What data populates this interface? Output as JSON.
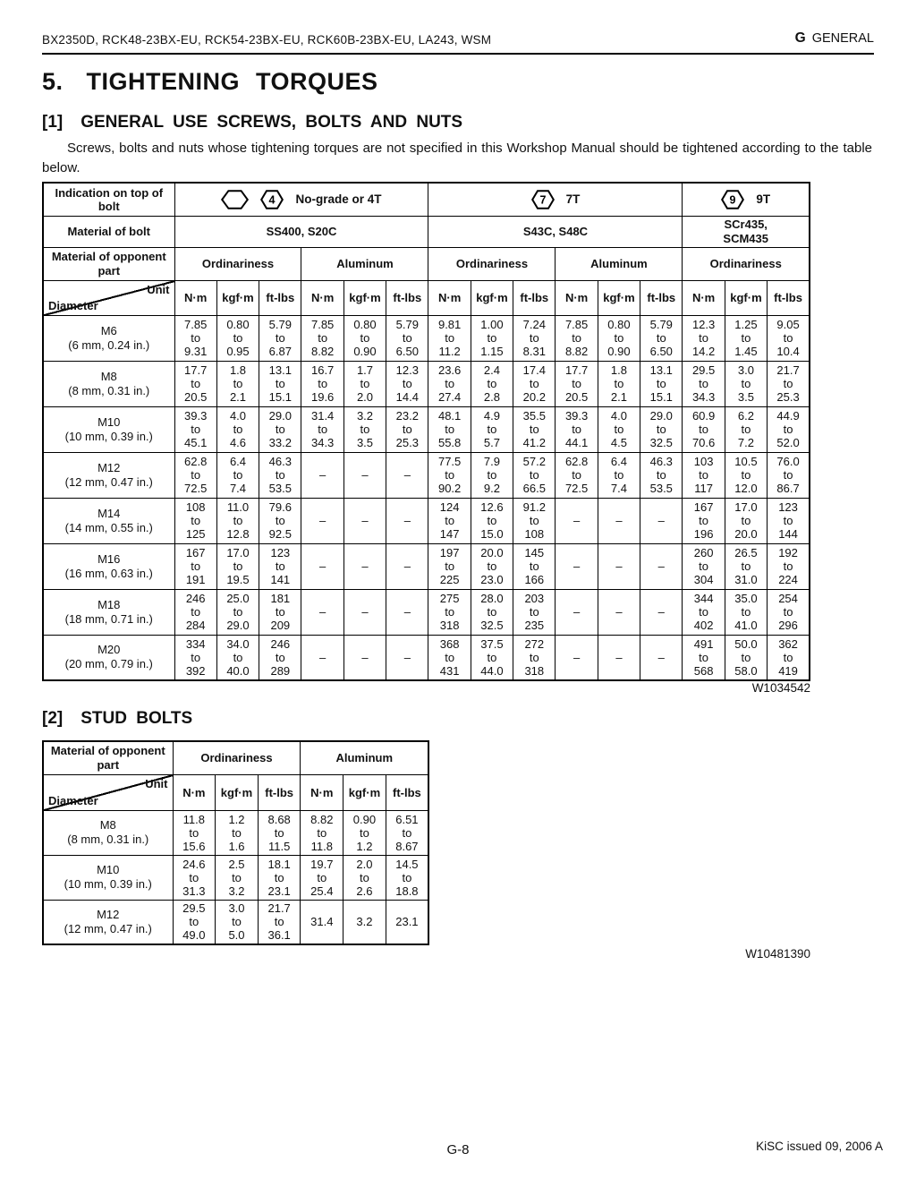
{
  "page": {
    "header_left": "BX2350D, RCK48-23BX-EU, RCK54-23BX-EU, RCK60B-23BX-EU, LA243, WSM",
    "header_right_letter": "G",
    "header_right_word": "GENERAL",
    "title_number": "5.",
    "title_text": "TIGHTENING TORQUES",
    "footer_page": "G-8",
    "footer_right": "KiSC issued 09, 2006 A"
  },
  "section1": {
    "number": "[1]",
    "heading": "GENERAL USE SCREWS, BOLTS AND NUTS",
    "paragraph": "Screws, bolts and nuts whose tightening torques are not specified in this Workshop Manual should be tightened according to the table below.",
    "watermark": "W1034542"
  },
  "section2": {
    "number": "[2]",
    "heading": "STUD BOLTS",
    "watermark": "W10481390"
  },
  "dash": "–",
  "to_word": "to",
  "table1": {
    "indication_label": "Indication on top of bolt",
    "grades": [
      {
        "icons": [
          {
            "type": "hexagon-blank"
          },
          {
            "type": "hexagon",
            "number": "4"
          }
        ],
        "label": "No-grade or 4T",
        "span": 6
      },
      {
        "icons": [
          {
            "type": "hexagon",
            "number": "7"
          }
        ],
        "label": "7T",
        "span": 6
      },
      {
        "icons": [
          {
            "type": "hexagon",
            "number": "9"
          }
        ],
        "label": "9T",
        "span": 3
      }
    ],
    "material_label": "Material of bolt",
    "materials": [
      {
        "text": "SS400, S20C",
        "span": 6
      },
      {
        "text": "S43C, S48C",
        "span": 6
      },
      {
        "text": "SCr435,\nSCM435",
        "span": 3
      }
    ],
    "opponent_label": "Material of opponent part",
    "groups": [
      {
        "label": "Ordinariness",
        "span": 3
      },
      {
        "label": "Aluminum",
        "span": 3
      },
      {
        "label": "Ordinariness",
        "span": 3
      },
      {
        "label": "Aluminum",
        "span": 3
      },
      {
        "label": "Ordinariness",
        "span": 3
      }
    ],
    "unit_label": "Unit",
    "diameter_label": "Diameter",
    "units": [
      "N·m",
      "kgf·m",
      "ft-lbs",
      "N·m",
      "kgf·m",
      "ft-lbs",
      "N·m",
      "kgf·m",
      "ft-lbs",
      "N·m",
      "kgf·m",
      "ft-lbs",
      "N·m",
      "kgf·m",
      "ft-lbs"
    ],
    "rows": [
      {
        "label": "M6",
        "sub": "(6 mm, 0.24 in.)",
        "cells": [
          [
            "7.85",
            "9.31"
          ],
          [
            "0.80",
            "0.95"
          ],
          [
            "5.79",
            "6.87"
          ],
          [
            "7.85",
            "8.82"
          ],
          [
            "0.80",
            "0.90"
          ],
          [
            "5.79",
            "6.50"
          ],
          [
            "9.81",
            "11.2"
          ],
          [
            "1.00",
            "1.15"
          ],
          [
            "7.24",
            "8.31"
          ],
          [
            "7.85",
            "8.82"
          ],
          [
            "0.80",
            "0.90"
          ],
          [
            "5.79",
            "6.50"
          ],
          [
            "12.3",
            "14.2"
          ],
          [
            "1.25",
            "1.45"
          ],
          [
            "9.05",
            "10.4"
          ]
        ]
      },
      {
        "label": "M8",
        "sub": "(8 mm, 0.31 in.)",
        "cells": [
          [
            "17.7",
            "20.5"
          ],
          [
            "1.8",
            "2.1"
          ],
          [
            "13.1",
            "15.1"
          ],
          [
            "16.7",
            "19.6"
          ],
          [
            "1.7",
            "2.0"
          ],
          [
            "12.3",
            "14.4"
          ],
          [
            "23.6",
            "27.4"
          ],
          [
            "2.4",
            "2.8"
          ],
          [
            "17.4",
            "20.2"
          ],
          [
            "17.7",
            "20.5"
          ],
          [
            "1.8",
            "2.1"
          ],
          [
            "13.1",
            "15.1"
          ],
          [
            "29.5",
            "34.3"
          ],
          [
            "3.0",
            "3.5"
          ],
          [
            "21.7",
            "25.3"
          ]
        ]
      },
      {
        "label": "M10",
        "sub": "(10 mm, 0.39 in.)",
        "cells": [
          [
            "39.3",
            "45.1"
          ],
          [
            "4.0",
            "4.6"
          ],
          [
            "29.0",
            "33.2"
          ],
          [
            "31.4",
            "34.3"
          ],
          [
            "3.2",
            "3.5"
          ],
          [
            "23.2",
            "25.3"
          ],
          [
            "48.1",
            "55.8"
          ],
          [
            "4.9",
            "5.7"
          ],
          [
            "35.5",
            "41.2"
          ],
          [
            "39.3",
            "44.1"
          ],
          [
            "4.0",
            "4.5"
          ],
          [
            "29.0",
            "32.5"
          ],
          [
            "60.9",
            "70.6"
          ],
          [
            "6.2",
            "7.2"
          ],
          [
            "44.9",
            "52.0"
          ]
        ]
      },
      {
        "label": "M12",
        "sub": "(12 mm, 0.47 in.)",
        "cells": [
          [
            "62.8",
            "72.5"
          ],
          [
            "6.4",
            "7.4"
          ],
          [
            "46.3",
            "53.5"
          ],
          null,
          null,
          null,
          [
            "77.5",
            "90.2"
          ],
          [
            "7.9",
            "9.2"
          ],
          [
            "57.2",
            "66.5"
          ],
          [
            "62.8",
            "72.5"
          ],
          [
            "6.4",
            "7.4"
          ],
          [
            "46.3",
            "53.5"
          ],
          [
            "103",
            "117"
          ],
          [
            "10.5",
            "12.0"
          ],
          [
            "76.0",
            "86.7"
          ]
        ]
      },
      {
        "label": "M14",
        "sub": "(14 mm, 0.55 in.)",
        "cells": [
          [
            "108",
            "125"
          ],
          [
            "11.0",
            "12.8"
          ],
          [
            "79.6",
            "92.5"
          ],
          null,
          null,
          null,
          [
            "124",
            "147"
          ],
          [
            "12.6",
            "15.0"
          ],
          [
            "91.2",
            "108"
          ],
          null,
          null,
          null,
          [
            "167",
            "196"
          ],
          [
            "17.0",
            "20.0"
          ],
          [
            "123",
            "144"
          ]
        ]
      },
      {
        "label": "M16",
        "sub": "(16 mm, 0.63 in.)",
        "cells": [
          [
            "167",
            "191"
          ],
          [
            "17.0",
            "19.5"
          ],
          [
            "123",
            "141"
          ],
          null,
          null,
          null,
          [
            "197",
            "225"
          ],
          [
            "20.0",
            "23.0"
          ],
          [
            "145",
            "166"
          ],
          null,
          null,
          null,
          [
            "260",
            "304"
          ],
          [
            "26.5",
            "31.0"
          ],
          [
            "192",
            "224"
          ]
        ]
      },
      {
        "label": "M18",
        "sub": "(18 mm, 0.71 in.)",
        "cells": [
          [
            "246",
            "284"
          ],
          [
            "25.0",
            "29.0"
          ],
          [
            "181",
            "209"
          ],
          null,
          null,
          null,
          [
            "275",
            "318"
          ],
          [
            "28.0",
            "32.5"
          ],
          [
            "203",
            "235"
          ],
          null,
          null,
          null,
          [
            "344",
            "402"
          ],
          [
            "35.0",
            "41.0"
          ],
          [
            "254",
            "296"
          ]
        ]
      },
      {
        "label": "M20",
        "sub": "(20 mm, 0.79 in.)",
        "cells": [
          [
            "334",
            "392"
          ],
          [
            "34.0",
            "40.0"
          ],
          [
            "246",
            "289"
          ],
          null,
          null,
          null,
          [
            "368",
            "431"
          ],
          [
            "37.5",
            "44.0"
          ],
          [
            "272",
            "318"
          ],
          null,
          null,
          null,
          [
            "491",
            "568"
          ],
          [
            "50.0",
            "58.0"
          ],
          [
            "362",
            "419"
          ]
        ]
      }
    ]
  },
  "table2": {
    "opponent_label": "Material of opponent part",
    "groups": [
      {
        "label": "Ordinariness",
        "span": 3
      },
      {
        "label": "Aluminum",
        "span": 3
      }
    ],
    "unit_label": "Unit",
    "diameter_label": "Diameter",
    "units": [
      "N·m",
      "kgf·m",
      "ft-lbs",
      "N·m",
      "kgf·m",
      "ft-lbs"
    ],
    "rows": [
      {
        "label": "M8",
        "sub": "(8 mm, 0.31 in.)",
        "cells": [
          [
            "11.8",
            "15.6"
          ],
          [
            "1.2",
            "1.6"
          ],
          [
            "8.68",
            "11.5"
          ],
          [
            "8.82",
            "11.8"
          ],
          [
            "0.90",
            "1.2"
          ],
          [
            "6.51",
            "8.67"
          ]
        ]
      },
      {
        "label": "M10",
        "sub": "(10 mm, 0.39 in.)",
        "cells": [
          [
            "24.6",
            "31.3"
          ],
          [
            "2.5",
            "3.2"
          ],
          [
            "18.1",
            "23.1"
          ],
          [
            "19.7",
            "25.4"
          ],
          [
            "2.0",
            "2.6"
          ],
          [
            "14.5",
            "18.8"
          ]
        ]
      },
      {
        "label": "M12",
        "sub": "(12 mm, 0.47 in.)",
        "cells": [
          [
            "29.5",
            "49.0"
          ],
          [
            "3.0",
            "5.0"
          ],
          [
            "21.7",
            "36.1"
          ],
          [
            "31.4"
          ],
          [
            "3.2"
          ],
          [
            "23.1"
          ]
        ]
      }
    ]
  }
}
